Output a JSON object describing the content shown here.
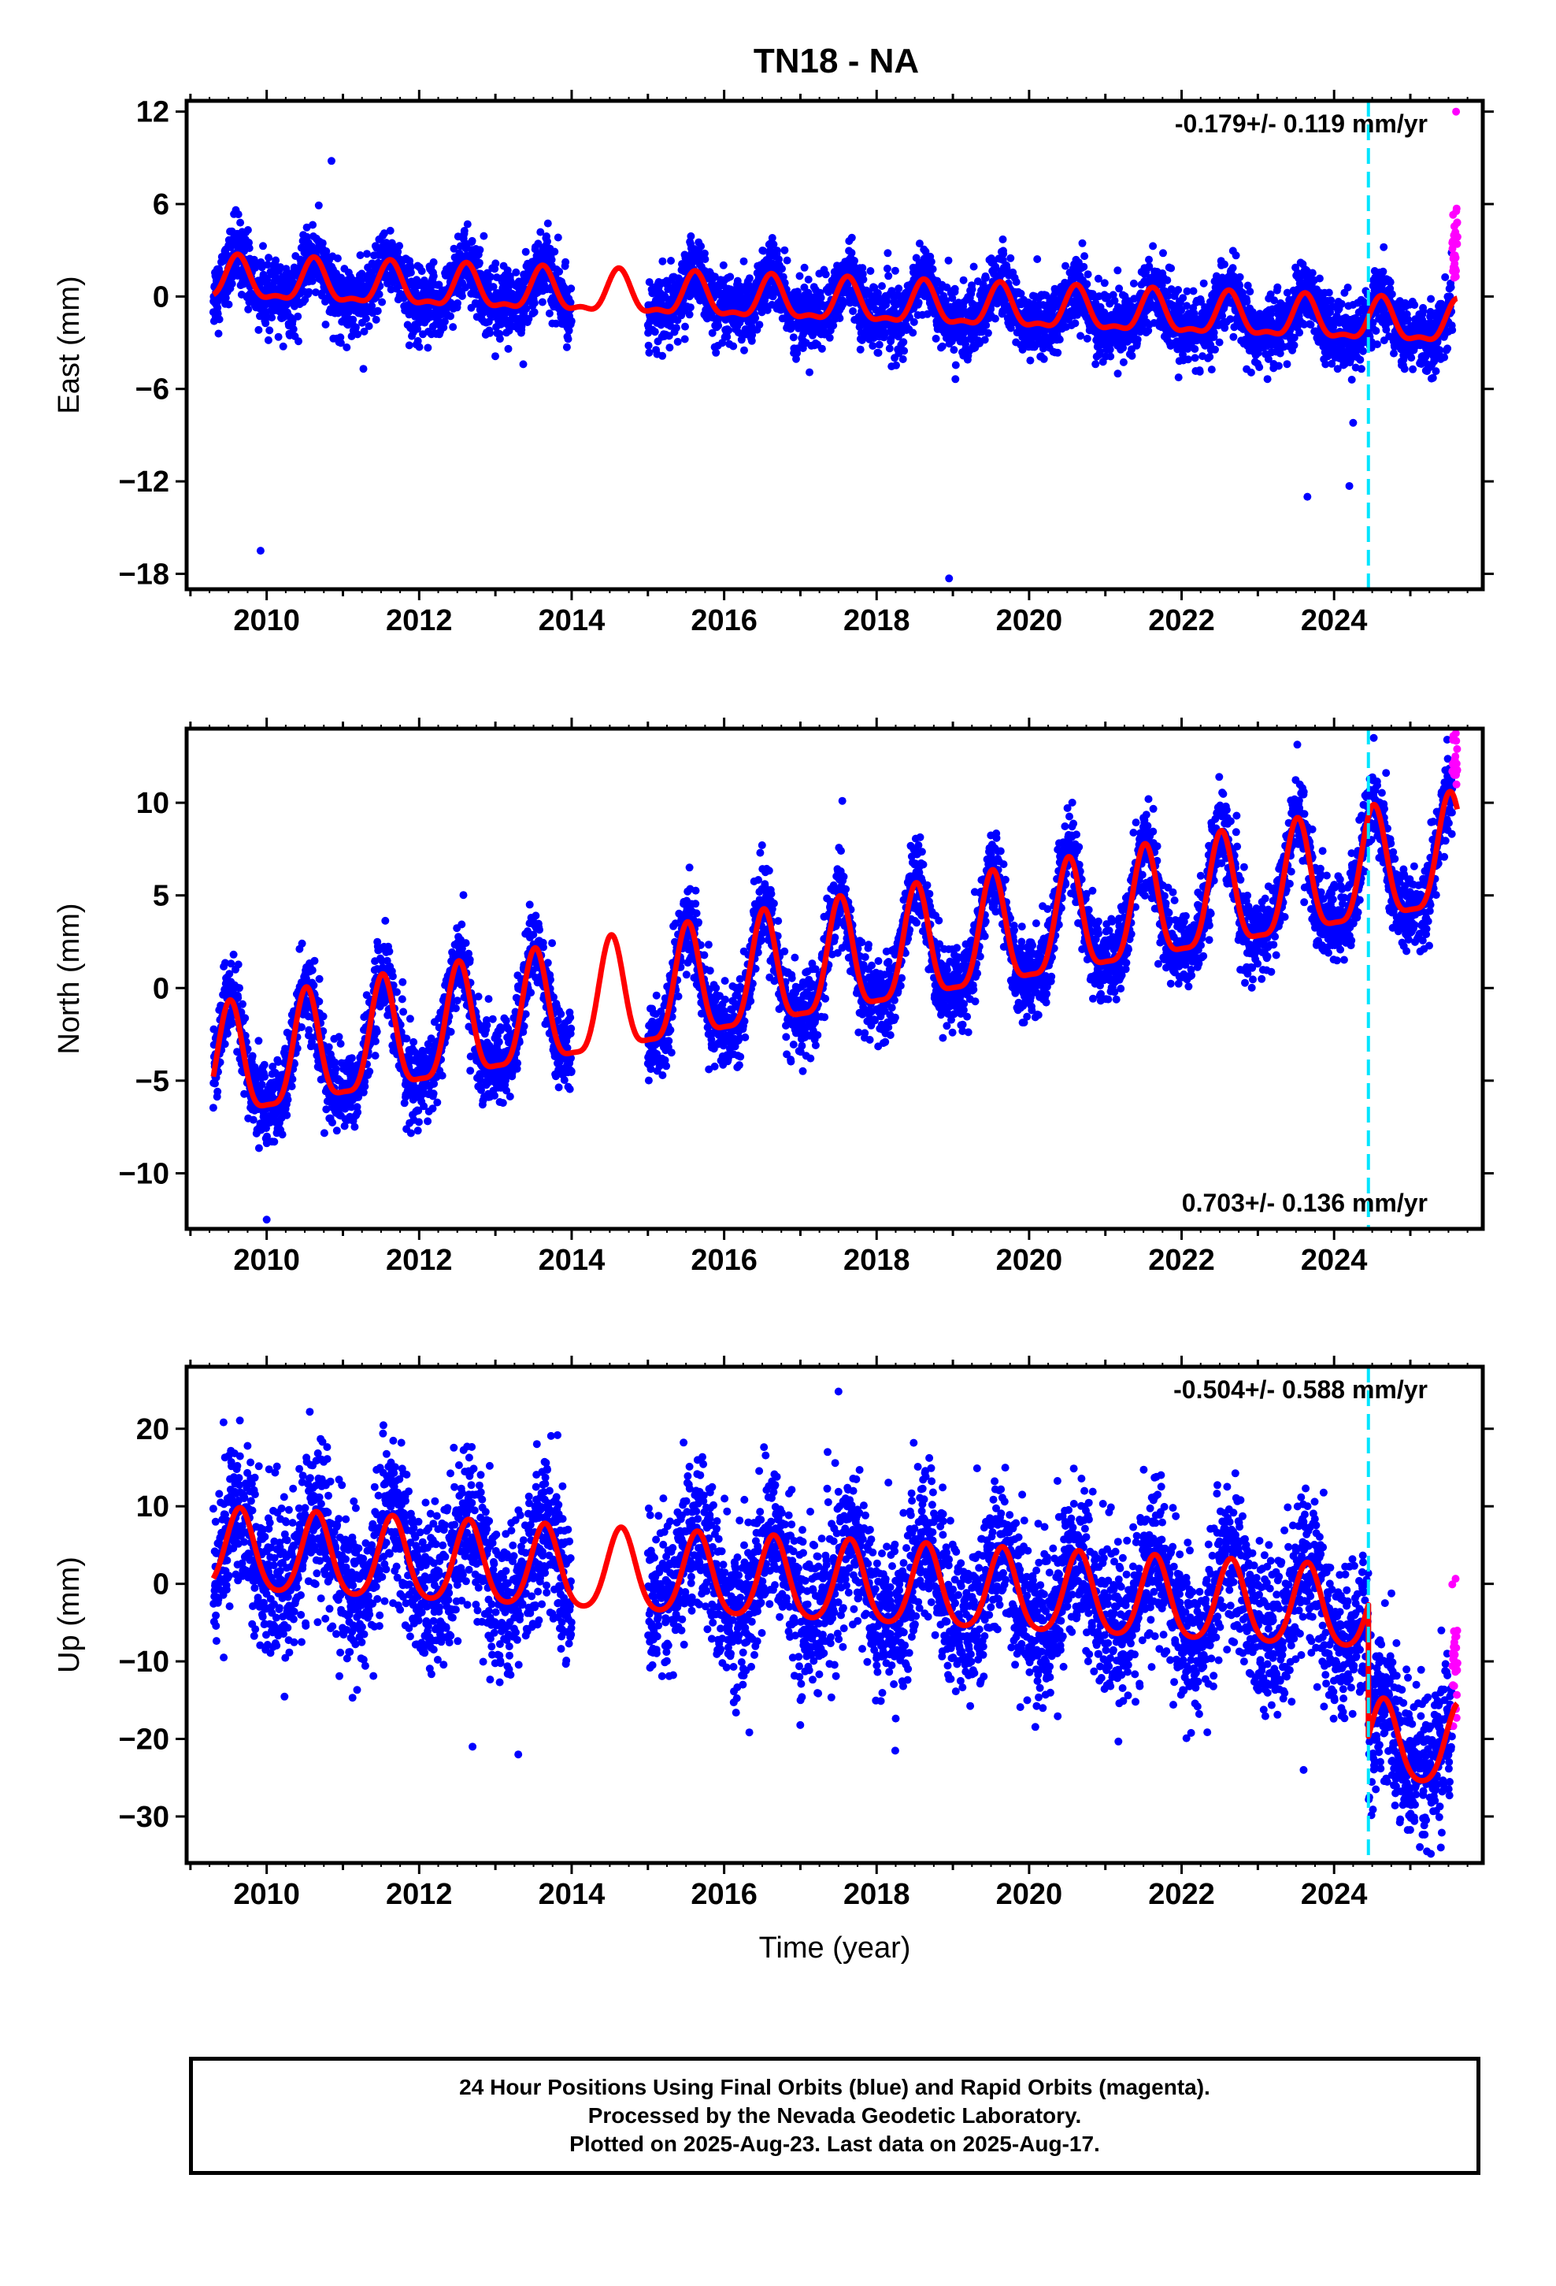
{
  "title": "TN18 - NA",
  "footer": {
    "line1": "24 Hour Positions Using Final Orbits (blue) and Rapid Orbits (magenta).",
    "line2": "Processed by the Nevada Geodetic Laboratory.",
    "line3": "Plotted on 2025-Aug-23. Last data on 2025-Aug-17."
  },
  "colors": {
    "final_orbits": "#0000ff",
    "rapid_orbits": "#ff00ff",
    "model_fit": "#ff0000",
    "event_marker": "#00e5ff"
  },
  "chart_data": [
    {
      "type": "scatter",
      "component": "east",
      "ylabel": "East (mm)",
      "xlabel": "",
      "xlim": [
        2008.95,
        2025.95
      ],
      "ylim": [
        -19,
        12.7
      ],
      "yticks": [
        12,
        6,
        0,
        -6,
        -12,
        -18
      ],
      "xticks": [
        2010,
        2012,
        2014,
        2016,
        2018,
        2020,
        2022,
        2024
      ],
      "rate_label": "-0.179+/- 0.119 mm/yr",
      "rate_position": "top-right",
      "grid": false,
      "event_line_x": 2024.45,
      "model": {
        "offset": 1.0,
        "rate": -0.179,
        "annual_amplitude": 1.3,
        "semiannual_amplitude": 0.5,
        "step_at_event": 0.0,
        "peak_phase_year": 0.62
      },
      "data_span": [
        2009.3,
        2025.55
      ],
      "data_gap": [
        2014.0,
        2015.0
      ],
      "rapid_span": [
        2025.55,
        2025.62
      ],
      "scatter_sd": 1.1,
      "outliers": [
        [
          2009.92,
          -16.5
        ],
        [
          2010.85,
          8.8
        ],
        [
          2018.95,
          -18.3
        ],
        [
          2023.65,
          -13.0
        ],
        [
          2024.2,
          -12.3
        ],
        [
          2024.25,
          -8.2
        ],
        [
          2025.6,
          12.0
        ]
      ]
    },
    {
      "type": "scatter",
      "component": "north",
      "ylabel": "North (mm)",
      "xlabel": "",
      "xlim": [
        2008.95,
        2025.95
      ],
      "ylim": [
        -13,
        14
      ],
      "yticks": [
        10,
        5,
        0,
        -5,
        -10
      ],
      "xticks": [
        2010,
        2012,
        2014,
        2016,
        2018,
        2020,
        2022,
        2024
      ],
      "rate_label": "0.703+/- 0.136 mm/yr",
      "rate_position": "bottom-right",
      "grid": false,
      "event_line_x": 2024.45,
      "model": {
        "offset": -4.6,
        "rate": 0.703,
        "annual_amplitude": 3.0,
        "semiannual_amplitude": 0.8,
        "step_at_event": 0.0,
        "peak_phase_year": 0.52
      },
      "data_span": [
        2009.3,
        2025.55
      ],
      "data_gap": [
        2014.0,
        2015.0
      ],
      "rapid_span": [
        2025.55,
        2025.62
      ],
      "scatter_sd": 1.1,
      "outliers": [
        [
          2010.0,
          -12.5
        ],
        [
          2013.45,
          4.5
        ],
        [
          2017.55,
          10.1
        ],
        [
          2024.52,
          13.5
        ]
      ]
    },
    {
      "type": "scatter",
      "component": "up",
      "ylabel": "Up (mm)",
      "xlabel": "Time (year)",
      "xlim": [
        2008.95,
        2025.95
      ],
      "ylim": [
        -36,
        28
      ],
      "yticks": [
        20,
        10,
        0,
        -10,
        -20,
        -30
      ],
      "xticks": [
        2010,
        2012,
        2014,
        2016,
        2018,
        2020,
        2022,
        2024
      ],
      "rate_label": "-0.504+/- 0.588 mm/yr",
      "rate_position": "top-right",
      "grid": false,
      "event_line_x": 2024.45,
      "model": {
        "offset": 4.0,
        "rate": -0.504,
        "annual_amplitude": 5.2,
        "semiannual_amplitude": 0.8,
        "step_at_event": -17.0,
        "peak_phase_year": 0.65
      },
      "data_span": [
        2009.3,
        2025.55
      ],
      "data_gap": [
        2014.0,
        2015.0
      ],
      "rapid_span": [
        2025.55,
        2025.62
      ],
      "scatter_sd": 5.0,
      "outliers": [
        [
          2012.7,
          -21.0
        ],
        [
          2013.3,
          -22.0
        ],
        [
          2017.5,
          24.8
        ],
        [
          2023.6,
          -24.0
        ],
        [
          2025.4,
          -34.0
        ]
      ]
    }
  ]
}
